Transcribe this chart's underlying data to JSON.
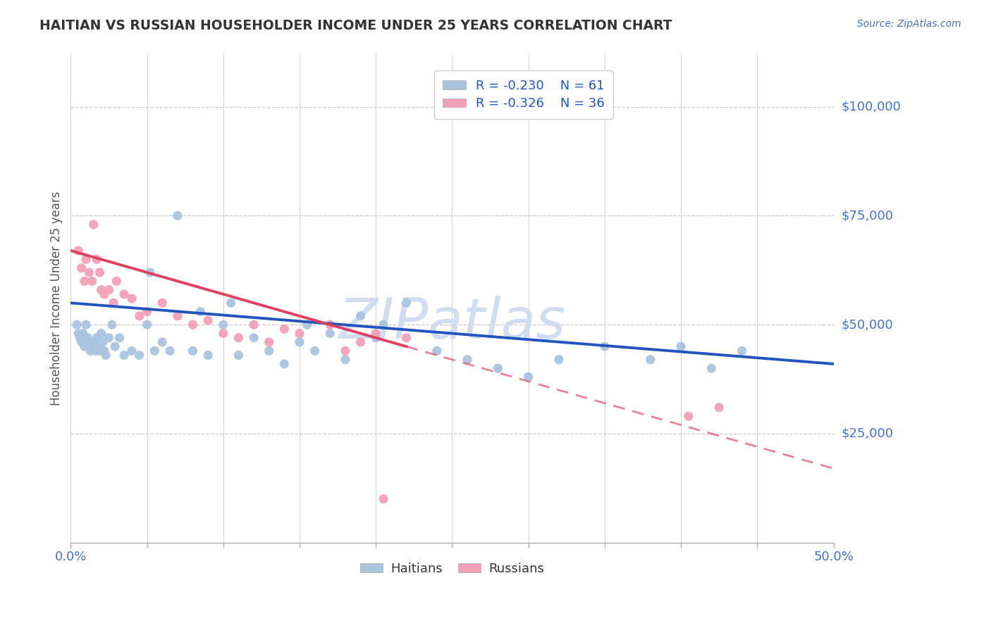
{
  "title": "HAITIAN VS RUSSIAN HOUSEHOLDER INCOME UNDER 25 YEARS CORRELATION CHART",
  "source_text": "Source: ZipAtlas.com",
  "ylabel": "Householder Income Under 25 years",
  "xmin": 0.0,
  "xmax": 50.0,
  "ymin": 0,
  "ymax": 112000,
  "yticks": [
    25000,
    50000,
    75000,
    100000
  ],
  "ytick_labels": [
    "$25,000",
    "$50,000",
    "$75,000",
    "$100,000"
  ],
  "haitian_R": -0.23,
  "haitian_N": 61,
  "russian_R": -0.326,
  "russian_N": 36,
  "haitian_color": "#aac4e0",
  "russian_color": "#f2a0b8",
  "haitian_line_color": "#2255bb",
  "russian_line_color": "#e04060",
  "legend_R_color": "#2255bb",
  "background_color": "#ffffff",
  "grid_color": "#c8c8d0",
  "title_color": "#333333",
  "source_color": "#4472c4",
  "watermark": "ZIPatlas",
  "watermark_color": "#d0ddf0",
  "haitian_x": [
    0.4,
    0.5,
    0.6,
    0.7,
    0.8,
    0.9,
    1.0,
    1.1,
    1.2,
    1.3,
    1.4,
    1.5,
    1.6,
    1.7,
    1.8,
    1.9,
    2.0,
    2.1,
    2.2,
    2.3,
    2.5,
    2.7,
    2.9,
    3.2,
    3.5,
    4.0,
    4.5,
    5.0,
    5.5,
    6.0,
    6.5,
    7.0,
    8.0,
    9.0,
    10.0,
    11.0,
    12.0,
    13.0,
    14.0,
    15.0,
    16.0,
    17.0,
    18.0,
    19.0,
    20.0,
    22.0,
    24.0,
    26.0,
    28.0,
    30.0,
    32.0,
    35.0,
    38.0,
    40.0,
    42.0,
    44.0,
    5.2,
    8.5,
    10.5,
    15.5,
    20.5
  ],
  "haitian_y": [
    50000,
    48000,
    47000,
    46000,
    48000,
    45000,
    50000,
    47000,
    46000,
    44000,
    45000,
    46000,
    44000,
    47000,
    45000,
    44000,
    48000,
    46000,
    44000,
    43000,
    47000,
    50000,
    45000,
    47000,
    43000,
    44000,
    43000,
    50000,
    44000,
    46000,
    44000,
    75000,
    44000,
    43000,
    50000,
    43000,
    47000,
    44000,
    41000,
    46000,
    44000,
    48000,
    42000,
    52000,
    47000,
    55000,
    44000,
    42000,
    40000,
    38000,
    42000,
    45000,
    42000,
    45000,
    40000,
    44000,
    62000,
    53000,
    55000,
    50000,
    50000
  ],
  "russian_x": [
    0.5,
    0.7,
    0.9,
    1.0,
    1.2,
    1.4,
    1.5,
    1.7,
    1.9,
    2.0,
    2.2,
    2.5,
    2.8,
    3.0,
    3.5,
    4.0,
    4.5,
    5.0,
    6.0,
    7.0,
    8.0,
    9.0,
    10.0,
    11.0,
    12.0,
    13.0,
    14.0,
    15.0,
    17.0,
    18.0,
    19.0,
    20.0,
    22.0,
    40.5,
    42.5,
    20.5
  ],
  "russian_y": [
    67000,
    63000,
    60000,
    65000,
    62000,
    60000,
    73000,
    65000,
    62000,
    58000,
    57000,
    58000,
    55000,
    60000,
    57000,
    56000,
    52000,
    53000,
    55000,
    52000,
    50000,
    51000,
    48000,
    47000,
    50000,
    46000,
    49000,
    48000,
    50000,
    44000,
    46000,
    48000,
    47000,
    29000,
    31000,
    10000
  ],
  "haitian_line_x0": 0.0,
  "haitian_line_y0": 55000,
  "haitian_line_x1": 50.0,
  "haitian_line_y1": 41000,
  "russian_line_x0": 0.0,
  "russian_line_y0": 67000,
  "russian_line_x1": 22.0,
  "russian_line_y1": 45000,
  "russian_dash_x0": 22.0,
  "russian_dash_y0": 45000,
  "russian_dash_x1": 50.0,
  "russian_dash_y1": 17000
}
